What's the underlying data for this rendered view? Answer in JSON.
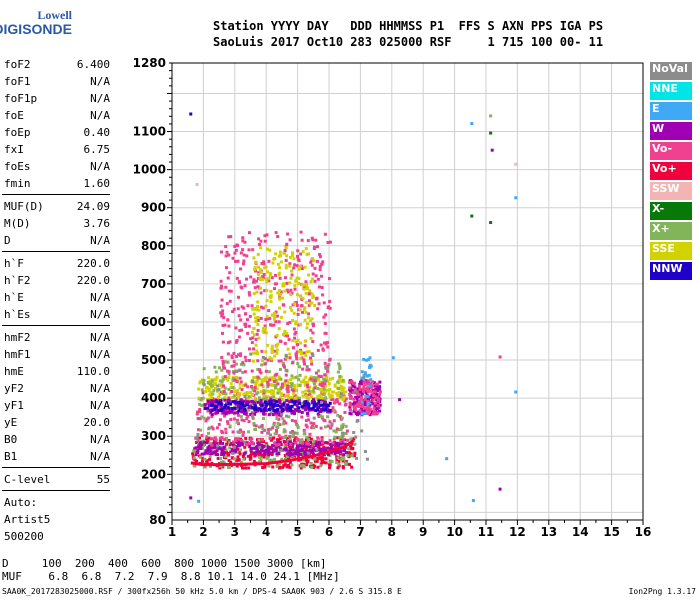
{
  "logo": {
    "line1": "Lowell",
    "line2": "DIGISONDE"
  },
  "header": {
    "line1": "Station YYYY DAY   DDD HHMMSS P1  FFS S AXN PPS IGA PS",
    "line2": "SaoLuis 2017 Oct10 283 025000 RSF     1 715 100 00- 11"
  },
  "params": {
    "group1": [
      {
        "label": "foF2",
        "value": "6.400"
      },
      {
        "label": "foF1",
        "value": "N/A"
      },
      {
        "label": "foF1p",
        "value": "N/A"
      },
      {
        "label": "foE",
        "value": "N/A"
      },
      {
        "label": "foEp",
        "value": "0.40"
      },
      {
        "label": "fxI",
        "value": "6.75"
      },
      {
        "label": "foEs",
        "value": "N/A"
      },
      {
        "label": "fmin",
        "value": "1.60"
      }
    ],
    "group2": [
      {
        "label": "MUF(D)",
        "value": "24.09"
      },
      {
        "label": "M(D)",
        "value": "3.76"
      },
      {
        "label": "D",
        "value": "N/A"
      }
    ],
    "group3": [
      {
        "label": "h`F",
        "value": "220.0"
      },
      {
        "label": "h`F2",
        "value": "220.0"
      },
      {
        "label": "h`E",
        "value": "N/A"
      },
      {
        "label": "h`Es",
        "value": "N/A"
      }
    ],
    "group4": [
      {
        "label": "hmF2",
        "value": "N/A"
      },
      {
        "label": "hmF1",
        "value": "N/A"
      },
      {
        "label": "hmE",
        "value": "110.0"
      },
      {
        "label": "yF2",
        "value": "N/A"
      },
      {
        "label": "yF1",
        "value": "N/A"
      },
      {
        "label": "yE",
        "value": "20.0"
      },
      {
        "label": "B0",
        "value": "N/A"
      },
      {
        "label": "B1",
        "value": "N/A"
      }
    ],
    "clevel": {
      "label": "C-level",
      "value": "55"
    },
    "auto": [
      "Auto:",
      "Artist5",
      "500200"
    ]
  },
  "legend": [
    {
      "label": "NoVal",
      "color": "#8c8c8c"
    },
    {
      "label": "NNE",
      "color": "#00e5e5"
    },
    {
      "label": "E",
      "color": "#3fa9f5"
    },
    {
      "label": "W",
      "color": "#a000b4"
    },
    {
      "label": "Vo-",
      "color": "#f04090"
    },
    {
      "label": "Vo+",
      "color": "#f0003c"
    },
    {
      "label": "SSW",
      "color": "#f5b4b4"
    },
    {
      "label": "X-",
      "color": "#087808"
    },
    {
      "label": "X+",
      "color": "#82b45a"
    },
    {
      "label": "SSE",
      "color": "#d2d200"
    },
    {
      "label": "NNW",
      "color": "#1e00c8"
    }
  ],
  "bottom": {
    "line1": "D     100  200  400  600  800 1000 1500 3000 [km]",
    "line2": "MUF    6.8  6.8  7.2  7.9  8.8 10.1 14.0 24.1 [MHz]"
  },
  "footer": {
    "left": "SAA0K_2017283025000.RSF / 300fx256h 50 kHz 5.0 km / DPS-4 SAA0K 903 / 2.6 S 315.8 E",
    "right": "Ion2Png 1.3.17"
  },
  "chart_data": {
    "type": "scatter",
    "xlabel": "",
    "ylabel": "",
    "xlim": [
      1,
      16
    ],
    "ylim": [
      80,
      1280
    ],
    "x_ticks": [
      1,
      2,
      3,
      4,
      5,
      6,
      7,
      8,
      9,
      10,
      11,
      12,
      13,
      14,
      15,
      16
    ],
    "y_ticks": [
      80,
      200,
      300,
      400,
      500,
      600,
      700,
      800,
      900,
      1000,
      1100,
      1280
    ],
    "grid": true,
    "trace_line": {
      "color": "#f0003c",
      "points": [
        [
          1.6,
          230
        ],
        [
          2.0,
          225
        ],
        [
          3.0,
          226
        ],
        [
          4.0,
          228
        ],
        [
          4.6,
          235
        ],
        [
          5.0,
          240
        ],
        [
          5.5,
          248
        ],
        [
          6.0,
          260
        ],
        [
          6.5,
          272
        ],
        [
          6.8,
          290
        ]
      ]
    },
    "clusters": [
      {
        "series": "Vo+",
        "color": "#f0003c",
        "x": [
          1.6,
          6.8
        ],
        "y": [
          220,
          300
        ],
        "n": 360
      },
      {
        "series": "X+",
        "color": "#82b45a",
        "x": [
          1.6,
          6.8
        ],
        "y": [
          222,
          300
        ],
        "n": 150
      },
      {
        "series": "W",
        "color": "#a000b4",
        "x": [
          1.7,
          6.5
        ],
        "y": [
          255,
          290
        ],
        "n": 240
      },
      {
        "series": "Vo-",
        "color": "#f04090",
        "x": [
          1.7,
          6.6
        ],
        "y": [
          280,
          420
        ],
        "n": 260
      },
      {
        "series": "SSE",
        "color": "#d2d200",
        "x": [
          1.8,
          6.5
        ],
        "y": [
          400,
          460
        ],
        "n": 260
      },
      {
        "series": "X+",
        "color": "#82b45a",
        "x": [
          1.8,
          6.5
        ],
        "y": [
          300,
          500
        ],
        "n": 200
      },
      {
        "series": "W",
        "color": "#a000b4",
        "x": [
          2.0,
          6.0
        ],
        "y": [
          360,
          400
        ],
        "n": 200
      },
      {
        "series": "NNW",
        "color": "#1e00c8",
        "x": [
          2.0,
          6.0
        ],
        "y": [
          370,
          395
        ],
        "n": 120
      },
      {
        "series": "Vo-",
        "color": "#f04090",
        "x": [
          2.5,
          6.0
        ],
        "y": [
          420,
          840
        ],
        "n": 400
      },
      {
        "series": "SSE",
        "color": "#d2d200",
        "x": [
          3.5,
          5.5
        ],
        "y": [
          500,
          800
        ],
        "n": 200
      },
      {
        "series": "W",
        "color": "#a000b4",
        "x": [
          6.6,
          7.6
        ],
        "y": [
          360,
          450
        ],
        "n": 140
      },
      {
        "series": "Vo-",
        "color": "#f04090",
        "x": [
          6.6,
          7.6
        ],
        "y": [
          360,
          450
        ],
        "n": 90
      },
      {
        "series": "E",
        "color": "#3fa9f5",
        "x": [
          7.0,
          7.3
        ],
        "y": [
          350,
          520
        ],
        "n": 25
      },
      {
        "series": "NoVal",
        "color": "#8c8c8c",
        "x": [
          1.5,
          7.2
        ],
        "y": [
          230,
          520
        ],
        "n": 60
      }
    ],
    "points": [
      {
        "x": 1.55,
        "y": 1150,
        "series": "NNW"
      },
      {
        "x": 1.75,
        "y": 965,
        "series": "SSW"
      },
      {
        "x": 1.55,
        "y": 142,
        "series": "W"
      },
      {
        "x": 1.8,
        "y": 133,
        "series": "E"
      },
      {
        "x": 9.7,
        "y": 245,
        "series": "E"
      },
      {
        "x": 10.5,
        "y": 1125,
        "series": "E"
      },
      {
        "x": 10.5,
        "y": 882,
        "series": "X-"
      },
      {
        "x": 10.55,
        "y": 135,
        "series": "E"
      },
      {
        "x": 11.1,
        "y": 1145,
        "series": "X+"
      },
      {
        "x": 11.1,
        "y": 1100,
        "series": "X-"
      },
      {
        "x": 11.15,
        "y": 1055,
        "series": "W"
      },
      {
        "x": 11.1,
        "y": 865,
        "series": "X-"
      },
      {
        "x": 11.4,
        "y": 512,
        "series": "Vo-"
      },
      {
        "x": 11.4,
        "y": 165,
        "series": "W"
      },
      {
        "x": 11.9,
        "y": 1018,
        "series": "SSW"
      },
      {
        "x": 11.9,
        "y": 930,
        "series": "E"
      },
      {
        "x": 11.9,
        "y": 420,
        "series": "E"
      },
      {
        "x": 8.2,
        "y": 400,
        "series": "W"
      },
      {
        "x": 8.0,
        "y": 510,
        "series": "E"
      }
    ]
  }
}
